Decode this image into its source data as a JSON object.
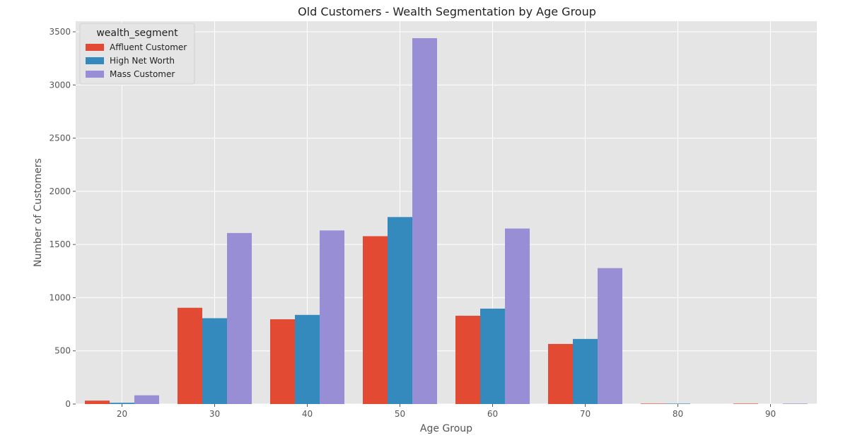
{
  "chart_data": {
    "type": "bar",
    "title": "Old Customers - Wealth Segmentation by Age Group",
    "xlabel": "Age Group",
    "ylabel": "Number of Customers",
    "categories": [
      "20",
      "30",
      "40",
      "50",
      "60",
      "70",
      "80",
      "90"
    ],
    "ylim": [
      0,
      3600
    ],
    "yticks": [
      0,
      500,
      1000,
      1500,
      2000,
      2500,
      3000,
      3500
    ],
    "grid": true,
    "legend": {
      "title": "wealth_segment",
      "placement": "top-left"
    },
    "series": [
      {
        "name": "Affluent Customer",
        "color": "#E24A33",
        "values": [
          32,
          905,
          797,
          1578,
          830,
          565,
          4,
          4
        ]
      },
      {
        "name": "High Net Worth",
        "color": "#348ABD",
        "values": [
          12,
          807,
          838,
          1758,
          897,
          612,
          4,
          0
        ]
      },
      {
        "name": "Mass Customer",
        "color": "#988ED5",
        "values": [
          82,
          1608,
          1632,
          3440,
          1650,
          1278,
          0,
          4
        ]
      }
    ],
    "style": {
      "plot_background": "#E5E5E5",
      "grid_color": "#FFFFFF"
    }
  }
}
